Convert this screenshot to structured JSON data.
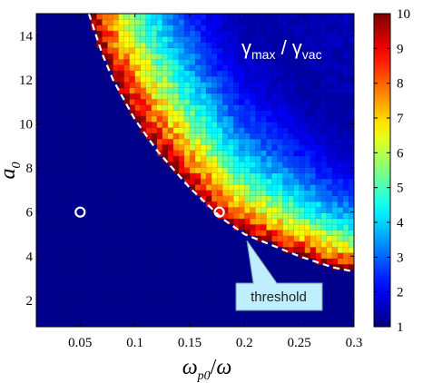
{
  "chart_data": {
    "type": "heatmap",
    "title": "",
    "annotation_label": {
      "base": "γ",
      "sub1": "max",
      "sep": " / ",
      "sub2": "vac"
    },
    "xlabel": {
      "base": "ω",
      "sub": "p0",
      "slash": "/",
      "denom": "ω"
    },
    "ylabel": {
      "base": "a",
      "sub": "0"
    },
    "xlim": [
      0.01,
      0.3
    ],
    "ylim": [
      0.8,
      15
    ],
    "xticks": [
      0.05,
      0.1,
      0.15,
      0.2,
      0.25,
      0.3
    ],
    "xtick_labels": [
      "0.05",
      "0.1",
      "0.15",
      "0.2",
      "0.25",
      "0.3"
    ],
    "yticks": [
      2,
      4,
      6,
      8,
      10,
      12,
      14
    ],
    "ytick_labels": [
      "2",
      "4",
      "6",
      "8",
      "10",
      "12",
      "14"
    ],
    "colorbar": {
      "range": [
        1,
        10
      ],
      "ticks": [
        1,
        2,
        3,
        4,
        5,
        6,
        7,
        8,
        9,
        10
      ],
      "tick_labels": [
        "1",
        "2",
        "3",
        "4",
        "5",
        "6",
        "7",
        "8",
        "9",
        "10"
      ],
      "colormap": "jet"
    },
    "grid": {
      "nx": 58,
      "ny": 55
    },
    "threshold_curve": {
      "label": "threshold",
      "style": "dashed",
      "color": "#ffffff",
      "points": [
        [
          0.058,
          15
        ],
        [
          0.07,
          13.2
        ],
        [
          0.08,
          12.0
        ],
        [
          0.1,
          10.2
        ],
        [
          0.12,
          8.8
        ],
        [
          0.15,
          7.1
        ],
        [
          0.18,
          5.7
        ],
        [
          0.2,
          5.0
        ],
        [
          0.22,
          4.6
        ],
        [
          0.25,
          4.0
        ],
        [
          0.28,
          3.5
        ],
        [
          0.3,
          3.3
        ]
      ]
    },
    "markers": [
      {
        "x": 0.05,
        "y": 6.0,
        "style": "open-circle",
        "color": "#ffffff"
      },
      {
        "x": 0.177,
        "y": 6.0,
        "style": "open-circle",
        "color": "#ffffff"
      }
    ],
    "background_color": "#00008f",
    "callout_color": "#bfefff"
  }
}
